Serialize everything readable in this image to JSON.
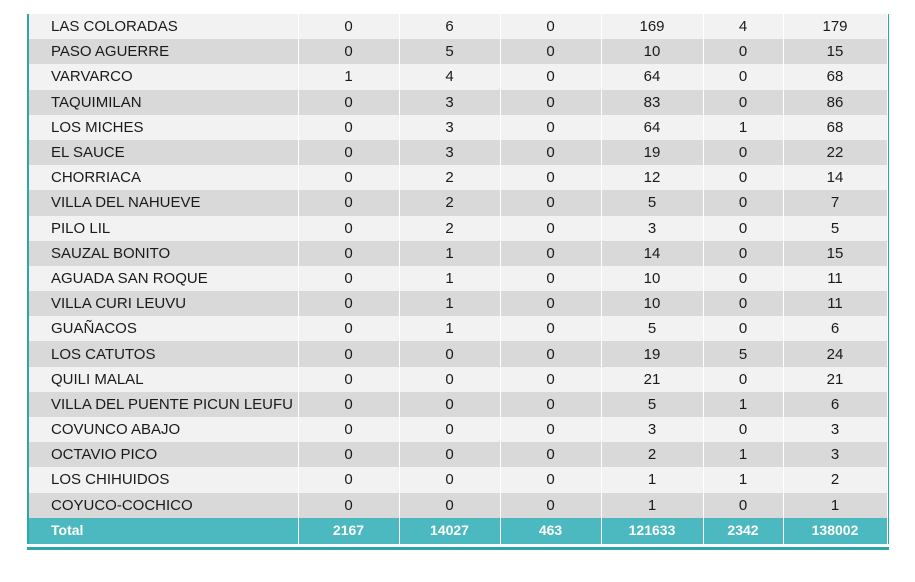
{
  "rows": [
    {
      "name": "LAS COLORADAS",
      "v": [
        "0",
        "6",
        "0",
        "169",
        "4",
        "179"
      ]
    },
    {
      "name": "PASO AGUERRE",
      "v": [
        "0",
        "5",
        "0",
        "10",
        "0",
        "15"
      ]
    },
    {
      "name": "VARVARCO",
      "v": [
        "1",
        "4",
        "0",
        "64",
        "0",
        "68"
      ]
    },
    {
      "name": "TAQUIMILAN",
      "v": [
        "0",
        "3",
        "0",
        "83",
        "0",
        "86"
      ]
    },
    {
      "name": "LOS MICHES",
      "v": [
        "0",
        "3",
        "0",
        "64",
        "1",
        "68"
      ]
    },
    {
      "name": "EL SAUCE",
      "v": [
        "0",
        "3",
        "0",
        "19",
        "0",
        "22"
      ]
    },
    {
      "name": "CHORRIACA",
      "v": [
        "0",
        "2",
        "0",
        "12",
        "0",
        "14"
      ]
    },
    {
      "name": "VILLA DEL NAHUEVE",
      "v": [
        "0",
        "2",
        "0",
        "5",
        "0",
        "7"
      ]
    },
    {
      "name": "PILO LIL",
      "v": [
        "0",
        "2",
        "0",
        "3",
        "0",
        "5"
      ]
    },
    {
      "name": "SAUZAL BONITO",
      "v": [
        "0",
        "1",
        "0",
        "14",
        "0",
        "15"
      ]
    },
    {
      "name": "AGUADA SAN ROQUE",
      "v": [
        "0",
        "1",
        "0",
        "10",
        "0",
        "11"
      ]
    },
    {
      "name": "VILLA CURI LEUVU",
      "v": [
        "0",
        "1",
        "0",
        "10",
        "0",
        "11"
      ]
    },
    {
      "name": "GUAÑACOS",
      "v": [
        "0",
        "1",
        "0",
        "5",
        "0",
        "6"
      ]
    },
    {
      "name": "LOS CATUTOS",
      "v": [
        "0",
        "0",
        "0",
        "19",
        "5",
        "24"
      ]
    },
    {
      "name": "QUILI MALAL",
      "v": [
        "0",
        "0",
        "0",
        "21",
        "0",
        "21"
      ]
    },
    {
      "name": "VILLA DEL PUENTE PICUN LEUFU",
      "v": [
        "0",
        "0",
        "0",
        "5",
        "1",
        "6"
      ]
    },
    {
      "name": "COVUNCO ABAJO",
      "v": [
        "0",
        "0",
        "0",
        "3",
        "0",
        "3"
      ]
    },
    {
      "name": "OCTAVIO PICO",
      "v": [
        "0",
        "0",
        "0",
        "2",
        "1",
        "3"
      ]
    },
    {
      "name": "LOS CHIHUIDOS",
      "v": [
        "0",
        "0",
        "0",
        "1",
        "1",
        "2"
      ]
    },
    {
      "name": "COYUCO-COCHICO",
      "v": [
        "0",
        "0",
        "0",
        "1",
        "0",
        "1"
      ]
    }
  ],
  "total": {
    "label": "Total",
    "v": [
      "2167",
      "14027",
      "463",
      "121633",
      "2342",
      "138002"
    ]
  },
  "colors": {
    "accent": "#4bb9bf",
    "row_light": "#f2f2f2",
    "row_dark": "#d9d9d9"
  }
}
